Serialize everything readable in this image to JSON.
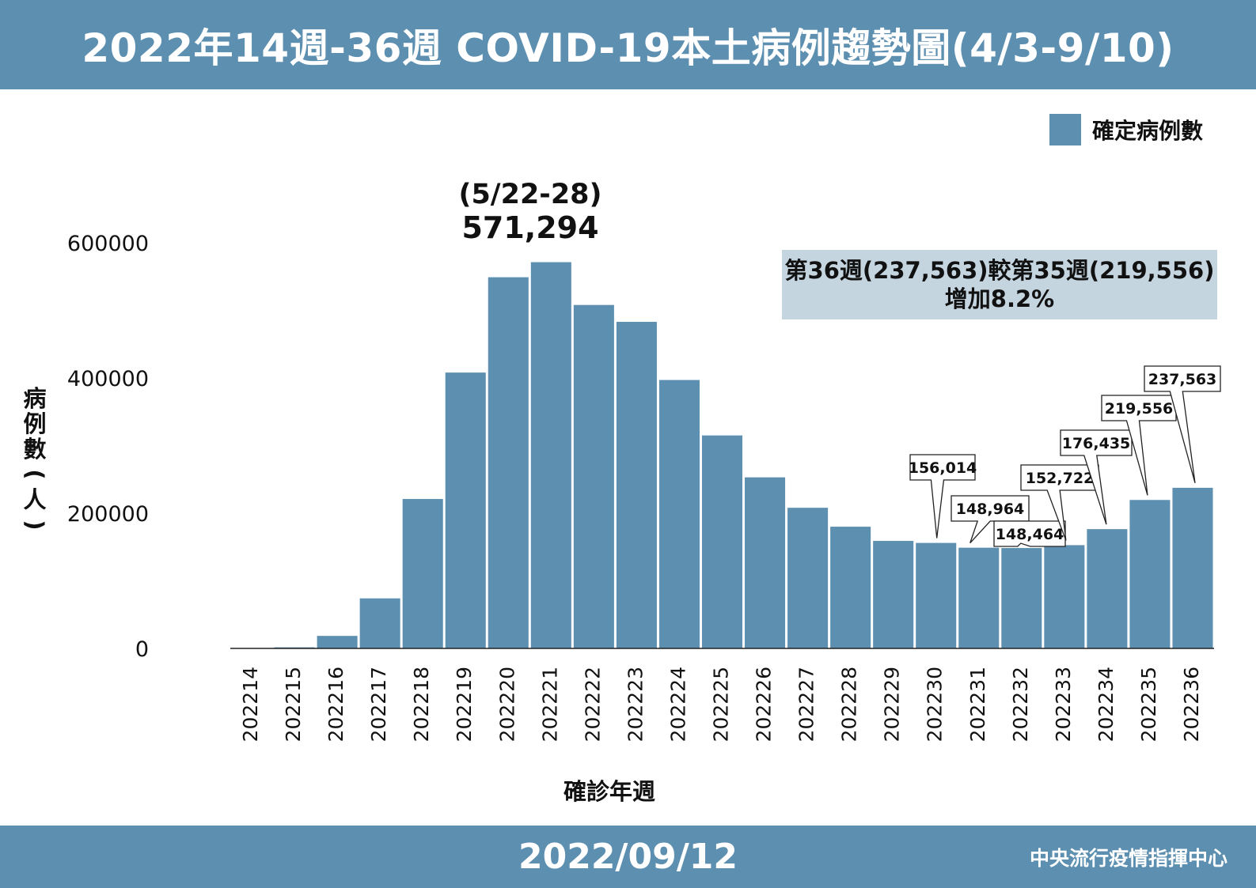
{
  "header": {
    "title": "2022年14週-36週 COVID-19本土病例趨勢圖(4/3-9/10)"
  },
  "footer": {
    "date": "2022/09/12",
    "org": "中央流行疫情指揮中心"
  },
  "legend": {
    "label": "確定病例數"
  },
  "peak_annotation": {
    "date": "(5/22-28)",
    "value": "571,294"
  },
  "note": {
    "line1": "第36週(237,563)較第35週(219,556)",
    "line2": "增加8.2%"
  },
  "colors": {
    "bar": "#5d8fb0",
    "header": "#5d8fb0",
    "note_bg": "#c5d5e0"
  },
  "chart_data": {
    "type": "bar",
    "xlabel": "確診年週",
    "ylabel": "病例數(人)",
    "ylim": [
      0,
      600000
    ],
    "yticks": [
      0,
      200000,
      400000,
      600000
    ],
    "grid": false,
    "legend_position": "top-right",
    "categories": [
      "202214",
      "202215",
      "202216",
      "202217",
      "202218",
      "202219",
      "202220",
      "202221",
      "202222",
      "202223",
      "202224",
      "202225",
      "202226",
      "202227",
      "202228",
      "202229",
      "202230",
      "202231",
      "202232",
      "202233",
      "202234",
      "202235",
      "202236"
    ],
    "series": [
      {
        "name": "確定病例數",
        "values": [
          300,
          1600,
          18500,
          74000,
          221000,
          408000,
          549000,
          571294,
          508000,
          483000,
          397000,
          315000,
          253000,
          208000,
          180000,
          159000,
          156014,
          148964,
          148464,
          152722,
          176435,
          219556,
          237563
        ]
      }
    ],
    "callouts": [
      {
        "category": "202230",
        "label": "156,014"
      },
      {
        "category": "202231",
        "label": "148,964"
      },
      {
        "category": "202232",
        "label": "148,464"
      },
      {
        "category": "202233",
        "label": "152,722"
      },
      {
        "category": "202234",
        "label": "176,435"
      },
      {
        "category": "202235",
        "label": "219,556"
      },
      {
        "category": "202236",
        "label": "237,563"
      }
    ]
  }
}
